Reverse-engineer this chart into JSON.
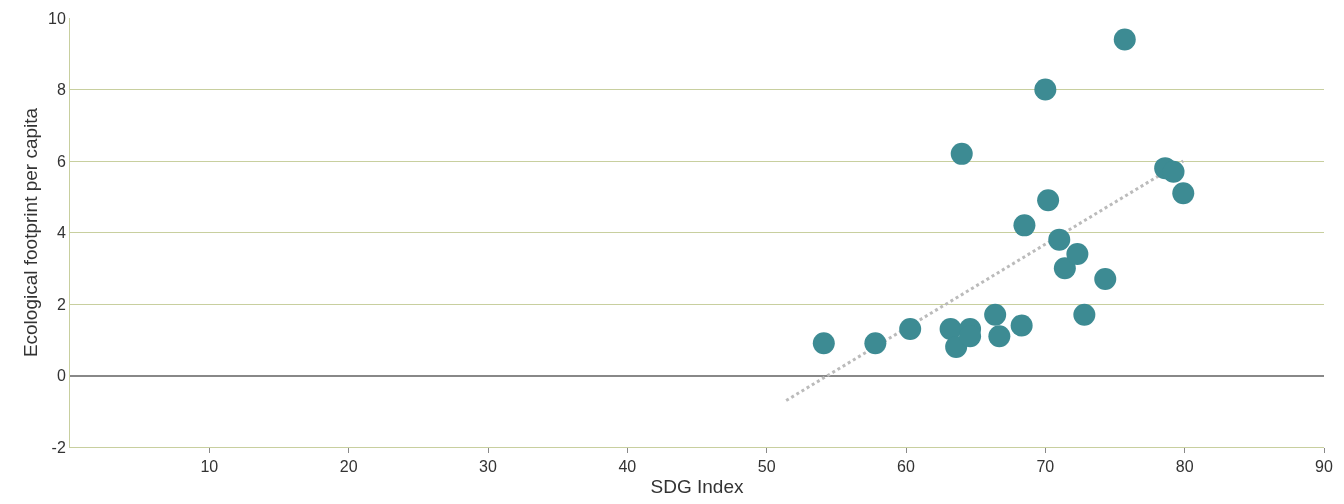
{
  "chart_data": {
    "type": "scatter",
    "xlabel": "SDG Index",
    "ylabel": "Ecological footprint per capita",
    "xlim": [
      0,
      90
    ],
    "xticks": [
      10,
      20,
      30,
      40,
      50,
      60,
      70,
      80,
      90
    ],
    "ylim": [
      -2,
      10
    ],
    "yticks": [
      -2,
      0,
      2,
      4,
      6,
      8,
      10
    ],
    "grid": "y",
    "marker": "circle",
    "series": [
      {
        "color": "#3d8b93",
        "x": [
          54.1,
          57.8,
          60.3,
          63.2,
          63.6,
          64.6,
          64.6,
          64.0,
          66.4,
          66.7,
          68.3,
          68.5,
          70.0,
          70.2,
          71.0,
          71.4,
          72.3,
          72.8,
          74.3,
          75.7,
          78.6,
          79.2,
          79.9
        ],
        "values": [
          0.9,
          0.9,
          1.3,
          1.3,
          0.8,
          1.3,
          1.1,
          6.2,
          1.7,
          1.1,
          1.4,
          4.2,
          8.0,
          4.9,
          3.8,
          3.0,
          3.4,
          1.7,
          2.7,
          9.4,
          5.8,
          5.7,
          5.1
        ]
      },
      {
        "type": "line",
        "color": "#bbbbbb",
        "line_style": "dotted",
        "marker": "none",
        "x": [
          51.4,
          79.9
        ],
        "values": [
          -0.7,
          6.0
        ]
      }
    ]
  }
}
